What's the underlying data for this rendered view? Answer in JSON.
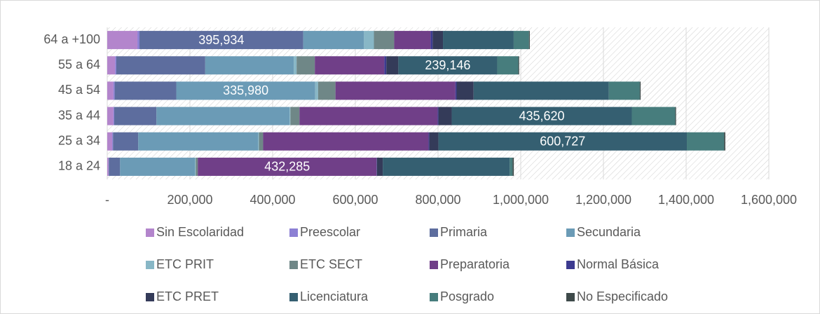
{
  "chart_data": {
    "type": "stacked-barh",
    "categories": [
      "64 a +100",
      "55 a 64",
      "45 a 54",
      "35 a 44",
      "25 a 34",
      "18 a 24"
    ],
    "series": [
      {
        "name": "Sin Escolaridad",
        "color": "#b385cc",
        "values": [
          73000,
          19000,
          15000,
          15000,
          12000,
          3000
        ]
      },
      {
        "name": "Preescolar",
        "color": "#8c80d4",
        "values": [
          5000,
          3000,
          3000,
          2000,
          2000,
          1000
        ]
      },
      {
        "name": "Primaria",
        "color": "#5d6d9e",
        "values": [
          395934,
          215000,
          149000,
          102000,
          61000,
          27000
        ],
        "value_labels": [
          "395,934",
          null,
          null,
          null,
          null,
          null
        ]
      },
      {
        "name": "Secundaria",
        "color": "#6b9bb6",
        "values": [
          147000,
          214000,
          335980,
          322000,
          290000,
          181000
        ],
        "value_labels": [
          null,
          null,
          "335,980",
          null,
          null,
          null
        ]
      },
      {
        "name": "ETC PRIT",
        "color": "#88b7c6",
        "values": [
          24000,
          7000,
          7000,
          2000,
          2000,
          2000
        ]
      },
      {
        "name": "ETC SECT",
        "color": "#6f8787",
        "values": [
          49000,
          44000,
          42000,
          22000,
          10000,
          5000
        ]
      },
      {
        "name": "Preparatoria",
        "color": "#703f88",
        "values": [
          88000,
          168000,
          290000,
          334000,
          400000,
          432285
        ],
        "value_labels": [
          null,
          null,
          null,
          null,
          null,
          "432,285"
        ]
      },
      {
        "name": "Normal Básica",
        "color": "#3c3a8f",
        "values": [
          5000,
          5000,
          3000,
          2000,
          2000,
          1000
        ]
      },
      {
        "name": "ETC PRET",
        "color": "#343b59",
        "values": [
          25000,
          29000,
          41000,
          32000,
          22000,
          14000
        ]
      },
      {
        "name": "Licenciatura",
        "color": "#355f71",
        "values": [
          171000,
          239146,
          327000,
          435620,
          600727,
          307000
        ],
        "value_labels": [
          null,
          "239,146",
          null,
          "435,620",
          "600,727",
          null
        ]
      },
      {
        "name": "Posgrado",
        "color": "#477d7d",
        "values": [
          37000,
          51000,
          75000,
          105000,
          90000,
          7000
        ]
      },
      {
        "name": "No Especificado",
        "color": "#3e4a4a",
        "values": [
          2000,
          2000,
          2000,
          2000,
          3000,
          3000
        ]
      }
    ],
    "xlim": [
      0,
      1600000
    ],
    "xticks": [
      {
        "value": 0,
        "label": "-"
      },
      {
        "value": 200000,
        "label": "200,000"
      },
      {
        "value": 400000,
        "label": "400,000"
      },
      {
        "value": 600000,
        "label": "600,000"
      },
      {
        "value": 800000,
        "label": "800,000"
      },
      {
        "value": 1000000,
        "label": "1,000,000"
      },
      {
        "value": 1200000,
        "label": "1,200,000"
      },
      {
        "value": 1400000,
        "label": "1,400,000"
      },
      {
        "value": 1600000,
        "label": "1,600,000"
      }
    ],
    "grid": true,
    "legend": "bottom"
  }
}
